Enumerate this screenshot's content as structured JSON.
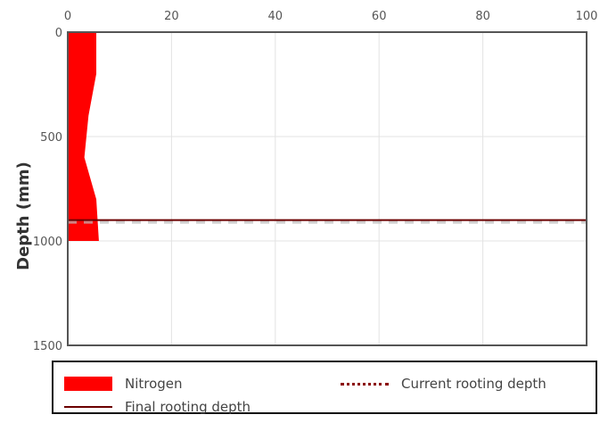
{
  "chart_data": {
    "type": "area",
    "orientation": "depth-profile",
    "ylabel": "Depth (mm)",
    "x_ticks": [
      "0",
      "20",
      "40",
      "60",
      "80",
      "100"
    ],
    "y_ticks": [
      "0",
      "500",
      "1000",
      "1500"
    ],
    "xlim": [
      0,
      100
    ],
    "ylim": [
      0,
      1500
    ],
    "y_inverted": true,
    "x_axis_position": "top",
    "grid": true,
    "legend_position": "bottom",
    "series": [
      {
        "name": "Nitrogen",
        "color": "#ff0000",
        "points": [
          {
            "depth": 0,
            "value": 5.5
          },
          {
            "depth": 200,
            "value": 5.5
          },
          {
            "depth": 400,
            "value": 4.0
          },
          {
            "depth": 600,
            "value": 3.2
          },
          {
            "depth": 800,
            "value": 5.5
          },
          {
            "depth": 1000,
            "value": 6.0
          }
        ]
      }
    ],
    "final_rooting_depth": 900,
    "current_rooting_depth": 900,
    "colors": {
      "final_rooting_depth": "#6b0000",
      "current_rooting_depth": "#8b0000",
      "grid": "#e3e3e3",
      "axis": "#555555"
    }
  },
  "legend": {
    "items": [
      {
        "label": "Nitrogen",
        "kind": "fill",
        "color": "#ff0000"
      },
      {
        "label": "Current rooting depth",
        "kind": "dash",
        "color": "#8b0000"
      },
      {
        "label": "Final rooting depth",
        "kind": "line",
        "color": "#6b0000"
      }
    ]
  }
}
